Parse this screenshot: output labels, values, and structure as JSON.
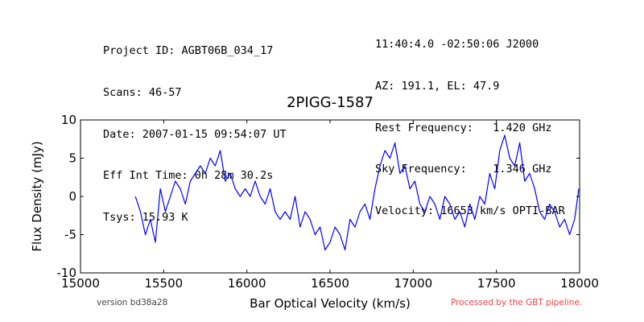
{
  "header_left": [
    "Project ID: AGBT06B_034_17",
    "Scans: 46-57",
    "Date: 2007-01-15 09:54:07 UT",
    "Eff Int Time: 0h 28m 30.2s",
    "Tsys: 15.93 K"
  ],
  "header_right": [
    "11:40:4.0 -02:50:06 J2000",
    "AZ: 191.1, EL: 47.9",
    "Rest Frequency:   1.420 GHz",
    "Sky Frequency:    1.346 GHz",
    "Velocity: 16653 km/s OPTI-BAR"
  ],
  "footer": {
    "version": "version bd38a28",
    "processed": "Processed by the GBT pipeline.",
    "processed_color": "#ee4444"
  },
  "chart_data": {
    "type": "line",
    "title": "2PIGG-1587",
    "xlabel": "Bar Optical Velocity (km/s)",
    "ylabel": "Flux Density (mJy)",
    "xlim": [
      15000,
      18000
    ],
    "ylim": [
      -10,
      10
    ],
    "xticks": [
      15000,
      15500,
      16000,
      16500,
      17000,
      17500,
      18000
    ],
    "yticks": [
      -10,
      -5,
      0,
      5,
      10
    ],
    "grid": false,
    "series": [
      {
        "color": "#0000ff",
        "x": [
          15330,
          15360,
          15390,
          15420,
          15450,
          15480,
          15510,
          15540,
          15570,
          15600,
          15630,
          15660,
          15690,
          15720,
          15750,
          15780,
          15810,
          15840,
          15870,
          15900,
          15930,
          15960,
          15990,
          16020,
          16050,
          16080,
          16110,
          16140,
          16170,
          16200,
          16230,
          16260,
          16290,
          16320,
          16350,
          16380,
          16410,
          16440,
          16470,
          16500,
          16530,
          16560,
          16590,
          16620,
          16650,
          16680,
          16710,
          16740,
          16770,
          16800,
          16830,
          16860,
          16890,
          16920,
          16950,
          16980,
          17010,
          17040,
          17070,
          17100,
          17130,
          17160,
          17190,
          17220,
          17250,
          17280,
          17310,
          17340,
          17370,
          17400,
          17430,
          17460,
          17490,
          17520,
          17550,
          17580,
          17610,
          17640,
          17670,
          17700,
          17730,
          17760,
          17790,
          17820,
          17850,
          17880,
          17910,
          17940,
          17970,
          17995
        ],
        "y": [
          0,
          -2,
          -5,
          -3,
          -6,
          1,
          -2,
          0,
          2,
          1,
          -1,
          2,
          3,
          4,
          3,
          5,
          4,
          6,
          2,
          3,
          1,
          0,
          1,
          0,
          2,
          0,
          -1,
          1,
          -2,
          -3,
          -2,
          -3,
          0,
          -4,
          -2,
          -3,
          -5,
          -4,
          -7,
          -6,
          -4,
          -5,
          -7,
          -3,
          -4,
          -2,
          -1,
          -3,
          1,
          4,
          6,
          5,
          7,
          3,
          4,
          1,
          2,
          -1,
          -2,
          0,
          -1,
          -3,
          0,
          -1,
          -3,
          -2,
          -4,
          -1,
          -3,
          0,
          -1,
          3,
          1,
          6,
          8,
          5,
          4,
          7,
          2,
          3,
          1,
          -2,
          -3,
          -1,
          -2,
          -4,
          -3,
          -5,
          -3,
          1
        ]
      }
    ]
  }
}
